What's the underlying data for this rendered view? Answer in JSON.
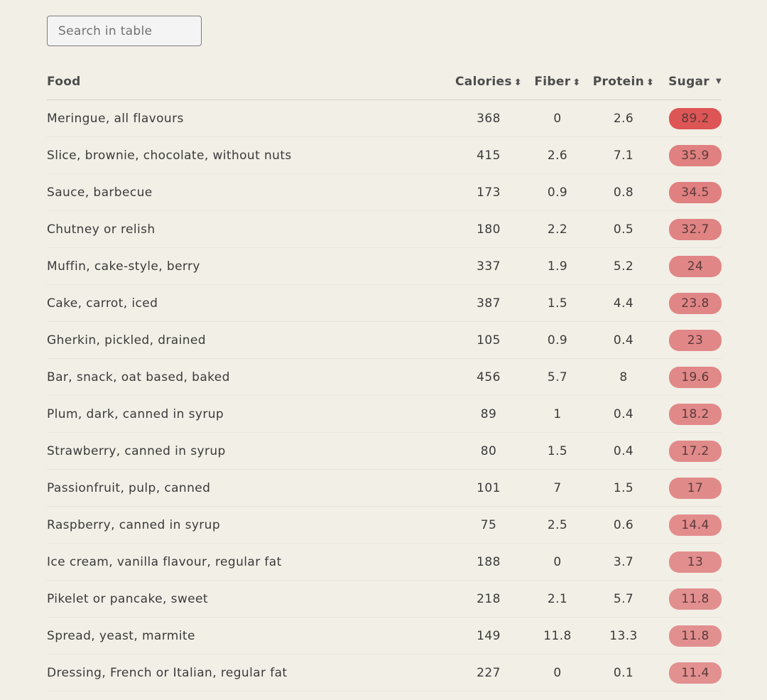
{
  "search": {
    "placeholder": "Search in table"
  },
  "columns": {
    "food": "Food",
    "calories": "Calories",
    "fiber": "Fiber",
    "protein": "Protein",
    "sugar": "Sugar"
  },
  "colors": {
    "background": "#f2efe6",
    "sugar_high": "#dd5555",
    "sugar_mid": "#e08282",
    "sugar_low": "#e29393"
  },
  "rows": [
    {
      "food": "Meringue, all flavours",
      "calories": "368",
      "fiber": "0",
      "protein": "2.6",
      "sugar": "89.2",
      "pill_color": "#dd5555"
    },
    {
      "food": "Slice, brownie, chocolate, without nuts",
      "calories": "415",
      "fiber": "2.6",
      "protein": "7.1",
      "sugar": "35.9",
      "pill_color": "#e08080"
    },
    {
      "food": "Sauce, barbecue",
      "calories": "173",
      "fiber": "0.9",
      "protein": "0.8",
      "sugar": "34.5",
      "pill_color": "#e08080"
    },
    {
      "food": "Chutney or relish",
      "calories": "180",
      "fiber": "2.2",
      "protein": "0.5",
      "sugar": "32.7",
      "pill_color": "#e08383"
    },
    {
      "food": "Muffin, cake-style, berry",
      "calories": "337",
      "fiber": "1.9",
      "protein": "5.2",
      "sugar": "24",
      "pill_color": "#e18686"
    },
    {
      "food": "Cake, carrot, iced",
      "calories": "387",
      "fiber": "1.5",
      "protein": "4.4",
      "sugar": "23.8",
      "pill_color": "#e18686"
    },
    {
      "food": "Gherkin, pickled, drained",
      "calories": "105",
      "fiber": "0.9",
      "protein": "0.4",
      "sugar": "23",
      "pill_color": "#e18787"
    },
    {
      "food": "Bar, snack, oat based, baked",
      "calories": "456",
      "fiber": "5.7",
      "protein": "8",
      "sugar": "19.6",
      "pill_color": "#e18888"
    },
    {
      "food": "Plum, dark, canned in syrup",
      "calories": "89",
      "fiber": "1",
      "protein": "0.4",
      "sugar": "18.2",
      "pill_color": "#e18989"
    },
    {
      "food": "Strawberry, canned in syrup",
      "calories": "80",
      "fiber": "1.5",
      "protein": "0.4",
      "sugar": "17.2",
      "pill_color": "#e18a8a"
    },
    {
      "food": "Passionfruit, pulp, canned",
      "calories": "101",
      "fiber": "7",
      "protein": "1.5",
      "sugar": "17",
      "pill_color": "#e18a8a"
    },
    {
      "food": "Raspberry, canned in syrup",
      "calories": "75",
      "fiber": "2.5",
      "protein": "0.6",
      "sugar": "14.4",
      "pill_color": "#e28c8c"
    },
    {
      "food": "Ice cream, vanilla flavour, regular fat",
      "calories": "188",
      "fiber": "0",
      "protein": "3.7",
      "sugar": "13",
      "pill_color": "#e28e8e"
    },
    {
      "food": "Pikelet or pancake, sweet",
      "calories": "218",
      "fiber": "2.1",
      "protein": "5.7",
      "sugar": "11.8",
      "pill_color": "#e28f8f"
    },
    {
      "food": "Spread, yeast, marmite",
      "calories": "149",
      "fiber": "11.8",
      "protein": "13.3",
      "sugar": "11.8",
      "pill_color": "#e28f8f"
    },
    {
      "food": "Dressing, French or Italian, regular fat",
      "calories": "227",
      "fiber": "0",
      "protein": "0.1",
      "sugar": "11.4",
      "pill_color": "#e29090"
    }
  ]
}
